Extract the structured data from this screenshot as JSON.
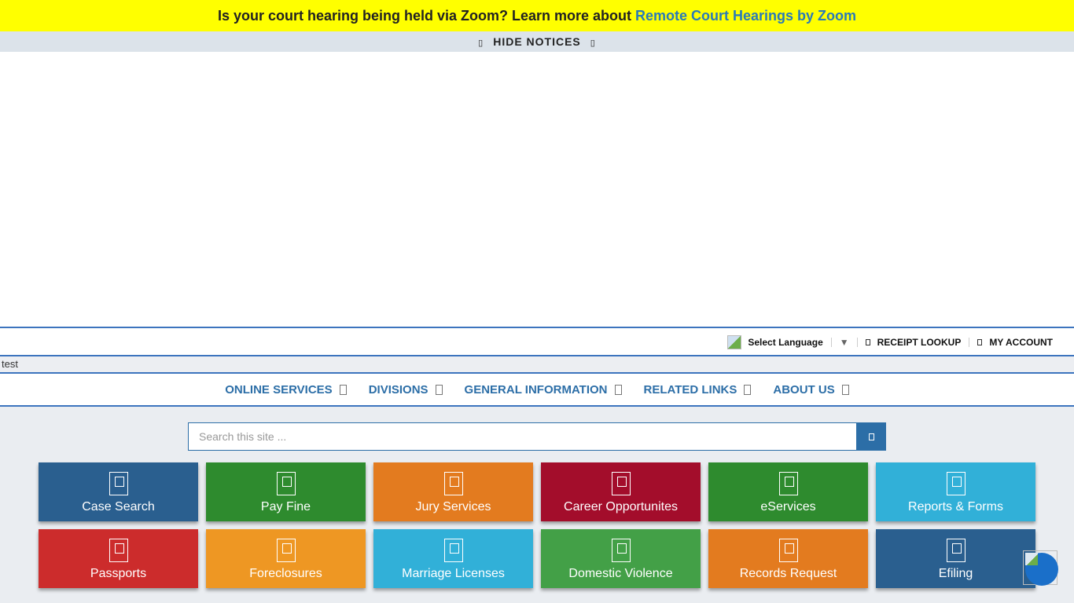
{
  "notice": {
    "text": "Is your court hearing being held via Zoom? Learn more about ",
    "link": "Remote Court Hearings by Zoom"
  },
  "hide_notices": {
    "label": "HIDE NOTICES"
  },
  "topbar": {
    "language": "Select Language",
    "language_arrow": "▼",
    "receipt": "RECEIPT LOOKUP",
    "account": "MY ACCOUNT"
  },
  "logo_alt": "test",
  "nav": [
    {
      "label": "ONLINE SERVICES"
    },
    {
      "label": "DIVISIONS"
    },
    {
      "label": "GENERAL INFORMATION"
    },
    {
      "label": "RELATED LINKS"
    },
    {
      "label": "ABOUT US"
    }
  ],
  "search": {
    "placeholder": "Search this site ..."
  },
  "tiles": [
    {
      "label": "Case Search",
      "color": "#2a5f8f"
    },
    {
      "label": "Pay Fine",
      "color": "#2e8b2e"
    },
    {
      "label": "Jury Services",
      "color": "#e37b1f"
    },
    {
      "label": "Career Opportunites",
      "color": "#a30d2b"
    },
    {
      "label": "eServices",
      "color": "#2e8b2e"
    },
    {
      "label": "Reports & Forms",
      "color": "#31b0d8"
    },
    {
      "label": "Passports",
      "color": "#cc2c2c"
    },
    {
      "label": "Foreclosures",
      "color": "#ee9723"
    },
    {
      "label": "Marriage Licenses",
      "color": "#31b0d8"
    },
    {
      "label": "Domestic Violence",
      "color": "#43a047"
    },
    {
      "label": "Records Request",
      "color": "#e37b1f"
    },
    {
      "label": "Efiling",
      "color": "#2a5f8f"
    }
  ]
}
